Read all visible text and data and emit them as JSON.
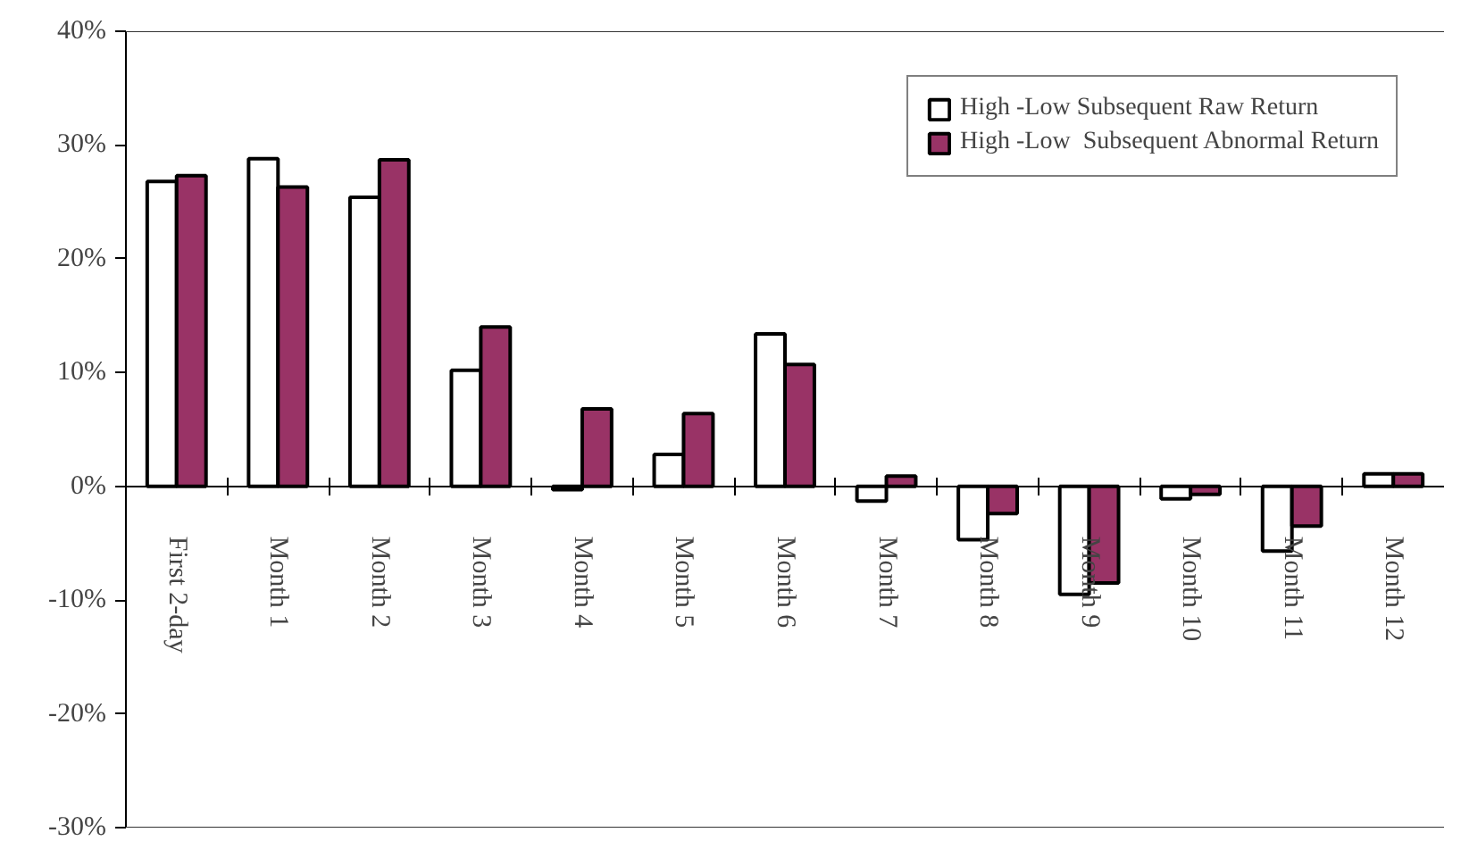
{
  "chart_data": {
    "type": "bar",
    "categories": [
      "First 2-day",
      "Month 1",
      "Month 2",
      "Month 3",
      "Month 4",
      "Month 5",
      "Month 6",
      "Month 7",
      "Month 8",
      "Month 9",
      "Month 10",
      "Month 11",
      "Month 12"
    ],
    "series": [
      {
        "name": "High -Low Subsequent Raw Return",
        "color": "#ffffff",
        "values": [
          26.8,
          28.8,
          25.4,
          10.2,
          -0.3,
          2.8,
          13.4,
          -1.3,
          -4.7,
          -9.5,
          -1.1,
          -5.7,
          1.1
        ]
      },
      {
        "name": "High -Low  Subsequent Abnormal Return",
        "color": "#993366",
        "values": [
          27.3,
          26.3,
          28.7,
          14.0,
          6.8,
          6.4,
          10.7,
          0.9,
          -2.4,
          -8.5,
          -0.7,
          -3.5,
          1.1
        ]
      }
    ],
    "ylim": [
      -30,
      40
    ],
    "yticks": [
      {
        "value": -30,
        "label": "-30%"
      },
      {
        "value": -20,
        "label": "-20%"
      },
      {
        "value": -10,
        "label": "-10%"
      },
      {
        "value": 0,
        "label": "0%"
      },
      {
        "value": 10,
        "label": "10%"
      },
      {
        "value": 20,
        "label": "20%"
      },
      {
        "value": 30,
        "label": "30%"
      },
      {
        "value": 40,
        "label": "40%"
      }
    ],
    "grid": false,
    "legend": "top right"
  }
}
